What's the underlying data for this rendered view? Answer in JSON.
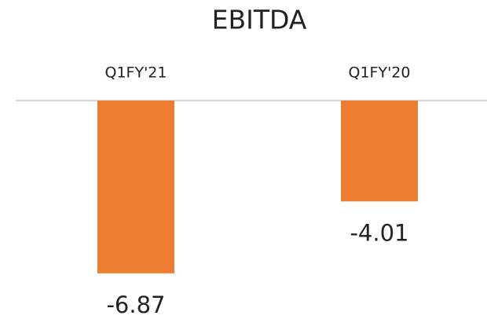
{
  "chart_data": {
    "type": "bar",
    "title": "EBITDA",
    "categories": [
      "Q1FY'21",
      "Q1FY'20"
    ],
    "values": [
      -6.87,
      -4.01
    ],
    "color": "#ed7d31",
    "ylim": [
      -8,
      0
    ]
  }
}
